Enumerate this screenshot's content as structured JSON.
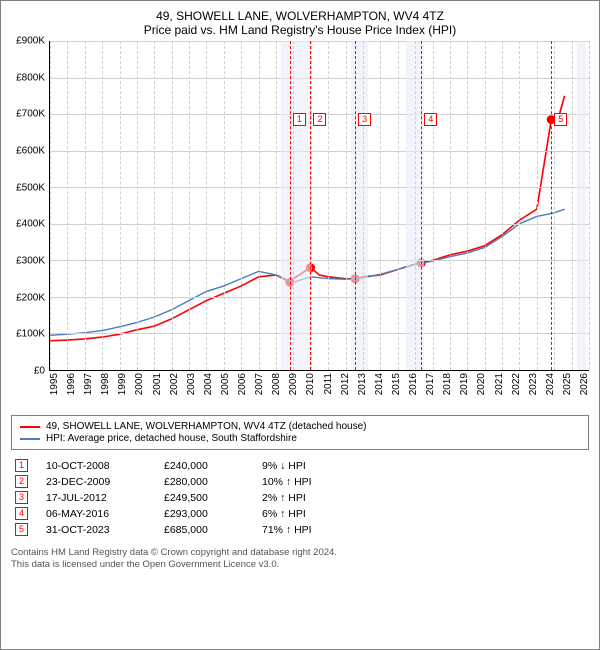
{
  "title": "49, SHOWELL LANE, WOLVERHAMPTON, WV4 4TZ",
  "subtitle": "Price paid vs. HM Land Registry's House Price Index (HPI)",
  "chart": {
    "type": "line",
    "ylabel_prefix": "£",
    "ylim": [
      0,
      900000
    ],
    "ytick_step": 100000,
    "yticks": [
      "£0",
      "£100K",
      "£200K",
      "£300K",
      "£400K",
      "£500K",
      "£600K",
      "£700K",
      "£800K",
      "£900K"
    ],
    "xlim": [
      1995,
      2026
    ],
    "xticks": [
      1995,
      1996,
      1997,
      1998,
      1999,
      2000,
      2001,
      2002,
      2003,
      2004,
      2005,
      2006,
      2007,
      2008,
      2009,
      2010,
      2011,
      2012,
      2013,
      2014,
      2015,
      2016,
      2017,
      2018,
      2019,
      2020,
      2021,
      2022,
      2023,
      2024,
      2025,
      2026
    ],
    "background_color": "#ffffff",
    "grid_color": "#d0d0d0",
    "shade_color": "#e8eef7",
    "shaded_ranges": [
      [
        2008.3,
        2010.0
      ],
      [
        2012.3,
        2013.3
      ],
      [
        2015.5,
        2016.5
      ],
      [
        2025.3,
        2025.8
      ]
    ],
    "series": [
      {
        "name": "property",
        "label": "49, SHOWELL LANE, WOLVERHAMPTON, WV4 4TZ (detached house)",
        "color": "#ff0000",
        "line_width": 1.6,
        "x": [
          1995,
          1996,
          1997,
          1998,
          1999,
          2000,
          2001,
          2002,
          2003,
          2004,
          2005,
          2006,
          2007,
          2008,
          2008.8,
          2009,
          2009.98,
          2010.5,
          2011,
          2012,
          2012.55,
          2013,
          2014,
          2015,
          2016,
          2016.35,
          2017,
          2018,
          2019,
          2020,
          2021,
          2022,
          2023,
          2023.83,
          2024,
          2024.3,
          2024.6
        ],
        "y": [
          80000,
          82000,
          85000,
          90000,
          98000,
          110000,
          120000,
          140000,
          165000,
          190000,
          210000,
          230000,
          255000,
          260000,
          240000,
          250000,
          280000,
          260000,
          255000,
          250000,
          249500,
          255000,
          260000,
          275000,
          290000,
          293000,
          300000,
          315000,
          325000,
          340000,
          370000,
          410000,
          440000,
          685000,
          690000,
          700000,
          750000
        ]
      },
      {
        "name": "hpi",
        "label": "HPI: Average price, detached house, South Staffordshire",
        "color": "#4a7ebb",
        "line_width": 1.4,
        "x": [
          1995,
          1996,
          1997,
          1998,
          1999,
          2000,
          2001,
          2002,
          2003,
          2004,
          2005,
          2006,
          2007,
          2008,
          2009,
          2010,
          2011,
          2012,
          2013,
          2014,
          2015,
          2016,
          2017,
          2018,
          2019,
          2020,
          2021,
          2022,
          2023,
          2024,
          2024.6
        ],
        "y": [
          95000,
          98000,
          102000,
          108000,
          118000,
          130000,
          145000,
          165000,
          190000,
          215000,
          230000,
          250000,
          270000,
          260000,
          240000,
          255000,
          250000,
          248000,
          252000,
          262000,
          275000,
          288000,
          298000,
          310000,
          320000,
          335000,
          365000,
          400000,
          420000,
          430000,
          440000
        ]
      }
    ],
    "events": [
      {
        "n": "1",
        "x": 2008.8,
        "date": "10-OCT-2008",
        "price": "£240,000",
        "pct": "9% ↓ HPI"
      },
      {
        "n": "2",
        "x": 2009.98,
        "date": "23-DEC-2009",
        "price": "£280,000",
        "pct": "10% ↑ HPI"
      },
      {
        "n": "3",
        "x": 2012.55,
        "date": "17-JUL-2012",
        "price": "£249,500",
        "pct": "2% ↑ HPI"
      },
      {
        "n": "4",
        "x": 2016.35,
        "date": "06-MAY-2016",
        "price": "£293,000",
        "pct": "6% ↑ HPI"
      },
      {
        "n": "5",
        "x": 2023.83,
        "date": "31-OCT-2023",
        "price": "£685,000",
        "pct": "71% ↑ HPI"
      }
    ],
    "event_marker_y": [
      240000,
      280000,
      249500,
      293000,
      685000
    ],
    "event_box_top_pct": 22
  },
  "legend": {
    "items": [
      {
        "color": "#ff0000",
        "label": "49, SHOWELL LANE, WOLVERHAMPTON, WV4 4TZ (detached house)"
      },
      {
        "color": "#4a7ebb",
        "label": "HPI: Average price, detached house, South Staffordshire"
      }
    ]
  },
  "footer": {
    "line1": "Contains HM Land Registry data © Crown copyright and database right 2024.",
    "line2": "This data is licensed under the Open Government Licence v3.0."
  }
}
